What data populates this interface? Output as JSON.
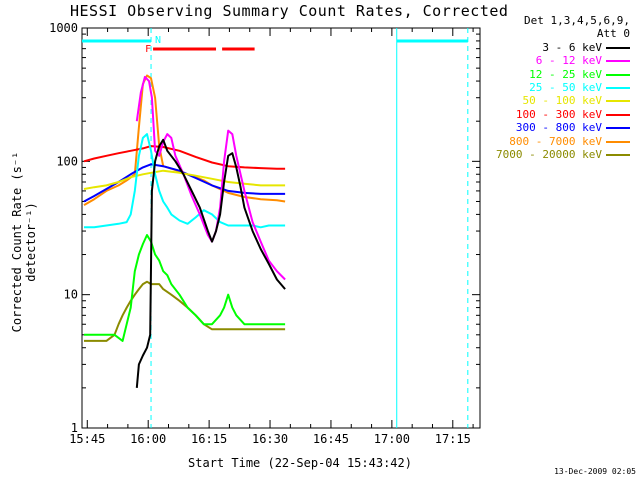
{
  "title": "HESSI Observing Summary Count Rates, Corrected",
  "legend": {
    "header1": "Det 1,3,4,5,6,9,",
    "header2": "Att 0",
    "items": [
      {
        "label": "3 - 6 keV",
        "color": "#000000"
      },
      {
        "label": "6 - 12 keV",
        "color": "#ff00ff"
      },
      {
        "label": "12 - 25 keV",
        "color": "#00ff00"
      },
      {
        "label": "25 - 50 keV",
        "color": "#00ffff"
      },
      {
        "label": "50 - 100 keV",
        "color": "#e6e600"
      },
      {
        "label": "100 - 300 keV",
        "color": "#ff0000"
      },
      {
        "label": "300 - 800 keV",
        "color": "#0000ff"
      },
      {
        "label": "800 - 7000 keV",
        "color": "#ff8c00"
      },
      {
        "label": "7000 - 20000 keV",
        "color": "#8b8b00"
      }
    ]
  },
  "timestamp": "13-Dec-2009 02:05",
  "markers": {
    "flare_label": "F",
    "n_label": "N"
  },
  "chart_data": {
    "type": "line",
    "title": "HESSI Observing Summary Count Rates, Corrected",
    "xlabel": "Start Time (22-Sep-04 15:43:42)",
    "ylabel": "Corrected Count Rate (s⁻¹ detector⁻¹)",
    "y_scale": "log",
    "ylim": [
      1,
      1000
    ],
    "xlim_minutes_after_15_43_42": [
      0,
      98
    ],
    "x_ticks": [
      "15:45",
      "16:00",
      "16:15",
      "16:30",
      "16:45",
      "17:00",
      "17:15"
    ],
    "x_tick_minutes": [
      1.3,
      16.3,
      31.3,
      46.3,
      61.3,
      76.3,
      91.3
    ],
    "y_ticks": [
      "1",
      "10",
      "100",
      "1000"
    ],
    "y_tick_values": [
      1,
      10,
      100,
      1000
    ],
    "grid": false,
    "legend_placement": "right-outside",
    "night_bars": [
      [
        0,
        17
      ],
      [
        77.5,
        95
      ]
    ],
    "saa_vlines_dashed": [
      17,
      95
    ],
    "saa_vlines_solid": [
      77.5
    ],
    "flare_bars": [
      [
        17.5,
        33
      ],
      [
        34.5,
        42.5
      ]
    ],
    "series": [
      {
        "name": "3 - 6 keV",
        "color": "#000000",
        "x": [
          13.5,
          14,
          15,
          16,
          16.8,
          17.2,
          18,
          19,
          20,
          21,
          23,
          25,
          27,
          29,
          31,
          32,
          33,
          34,
          35,
          36,
          37,
          38,
          39,
          40,
          42,
          44,
          46,
          48,
          50
        ],
        "y": [
          2.0,
          3.0,
          3.5,
          4.0,
          5.0,
          60,
          100,
          130,
          145,
          120,
          100,
          80,
          60,
          45,
          30,
          25,
          30,
          40,
          70,
          110,
          115,
          90,
          65,
          45,
          30,
          22,
          17,
          13,
          11
        ]
      },
      {
        "name": "6 - 12 keV",
        "color": "#ff00ff",
        "x": [
          13.5,
          14.5,
          15.5,
          16.5,
          17.2,
          18,
          19,
          20,
          21,
          22,
          23,
          25,
          27,
          29,
          31,
          32,
          33,
          34,
          35,
          36,
          37,
          38,
          40,
          42,
          44,
          46,
          48,
          50
        ],
        "y": [
          200,
          330,
          430,
          400,
          300,
          120,
          110,
          140,
          160,
          150,
          110,
          80,
          55,
          40,
          28,
          25,
          30,
          45,
          100,
          170,
          160,
          110,
          60,
          35,
          25,
          18,
          15,
          13
        ]
      },
      {
        "name": "12 - 25 keV",
        "color": "#00ff00",
        "x": [
          0.5,
          2,
          4,
          6,
          8,
          10,
          12,
          13,
          14,
          15,
          16,
          17,
          18,
          19,
          20,
          21,
          22,
          24,
          26,
          28,
          30,
          32,
          34,
          35,
          36,
          37,
          38,
          40,
          42,
          44,
          46,
          48,
          50
        ],
        "y": [
          5,
          5,
          5,
          5,
          5,
          4.5,
          8,
          15,
          20,
          24,
          28,
          25,
          20,
          18,
          15,
          14,
          12,
          10,
          8,
          7,
          6,
          6,
          7,
          8,
          10,
          8,
          7,
          6,
          6,
          6,
          6,
          6,
          6
        ]
      },
      {
        "name": "25 - 50 keV",
        "color": "#00ffff",
        "x": [
          0.5,
          3,
          6,
          9,
          11,
          12,
          13,
          14,
          15,
          16,
          17,
          18,
          19,
          20,
          21,
          22,
          24,
          26,
          28,
          30,
          32,
          34,
          36,
          38,
          40,
          42,
          44,
          46,
          48,
          50
        ],
        "y": [
          32,
          32,
          33,
          34,
          35,
          40,
          60,
          110,
          150,
          160,
          120,
          80,
          60,
          50,
          45,
          40,
          36,
          34,
          38,
          43,
          40,
          35,
          33,
          33,
          33,
          33,
          32,
          33,
          33,
          33
        ]
      },
      {
        "name": "50 - 100 keV",
        "color": "#e6e600",
        "x": [
          0.5,
          3,
          6,
          9,
          12,
          15,
          17,
          20,
          24,
          28,
          32,
          36,
          40,
          44,
          48,
          50
        ],
        "y": [
          62,
          64,
          66,
          70,
          76,
          80,
          82,
          85,
          82,
          78,
          74,
          70,
          68,
          66,
          66,
          66
        ]
      },
      {
        "name": "100 - 300 keV",
        "color": "#ff0000",
        "x": [
          0.5,
          3,
          6,
          9,
          12,
          15,
          17,
          20,
          24,
          28,
          32,
          36,
          40,
          44,
          48,
          50
        ],
        "y": [
          100,
          105,
          110,
          115,
          120,
          125,
          130,
          128,
          120,
          108,
          98,
          92,
          90,
          89,
          88,
          88
        ]
      },
      {
        "name": "300 - 800 keV",
        "color": "#0000ff",
        "x": [
          0.5,
          3,
          6,
          9,
          12,
          15,
          17,
          20,
          24,
          28,
          32,
          36,
          40,
          44,
          48,
          50
        ],
        "y": [
          50,
          55,
          62,
          70,
          80,
          90,
          95,
          92,
          85,
          75,
          66,
          60,
          58,
          57,
          57,
          57
        ]
      },
      {
        "name": "800 - 7000 keV",
        "color": "#ff8c00",
        "x": [
          0.5,
          3,
          6,
          9,
          11,
          13,
          14,
          15,
          16,
          17,
          18,
          19,
          20,
          22,
          24,
          26,
          28,
          30,
          32,
          36,
          40,
          44,
          48,
          50
        ],
        "y": [
          47,
          52,
          60,
          66,
          72,
          80,
          180,
          380,
          440,
          420,
          300,
          130,
          92,
          88,
          84,
          80,
          76,
          72,
          66,
          58,
          54,
          52,
          51,
          50
        ]
      },
      {
        "name": "7000 - 20000 keV",
        "color": "#8b8b00",
        "x": [
          0.5,
          3,
          6,
          8,
          9,
          10,
          11,
          12,
          13,
          14,
          15,
          16,
          17,
          18,
          19,
          20,
          22,
          24,
          26,
          28,
          30,
          32,
          34,
          36,
          38,
          40,
          42,
          44,
          46,
          48,
          50
        ],
        "y": [
          4.5,
          4.5,
          4.5,
          5,
          6,
          7,
          8,
          9,
          10,
          11,
          12,
          12.5,
          12,
          12,
          12,
          11,
          10,
          9,
          8,
          7,
          6,
          5.5,
          5.5,
          5.5,
          5.5,
          5.5,
          5.5,
          5.5,
          5.5,
          5.5,
          5.5
        ]
      }
    ]
  }
}
